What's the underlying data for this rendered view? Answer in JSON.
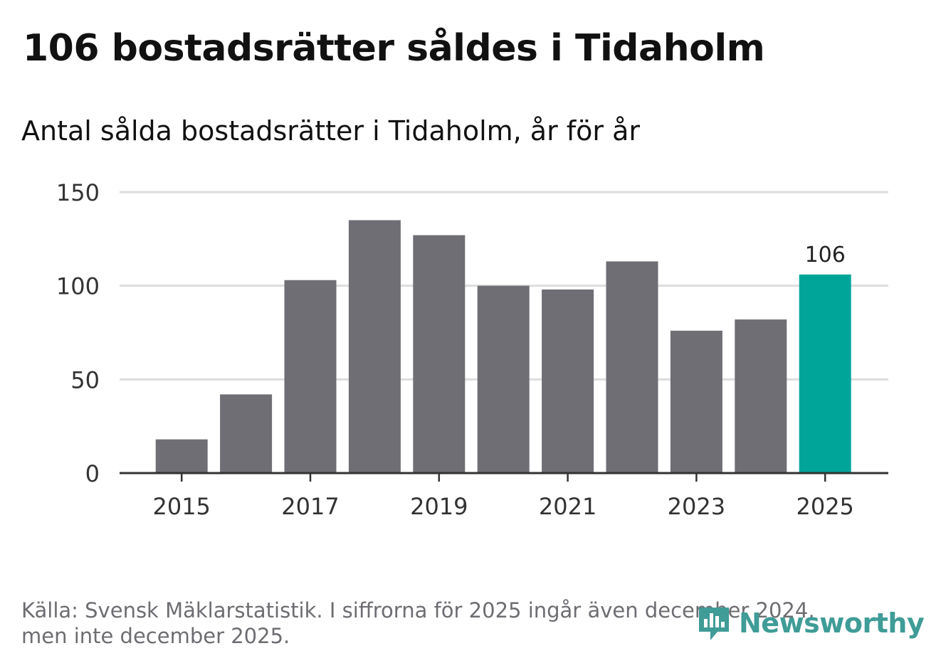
{
  "header": {
    "title": "106 bostadsrätter såldes i Tidaholm",
    "subtitle": "Antal sålda bostadsrätter i Tidaholm, år för år"
  },
  "chart_data": {
    "type": "bar",
    "title": "106 bostadsrätter såldes i Tidaholm",
    "subtitle": "Antal sålda bostadsrätter i Tidaholm, år för år",
    "categories": [
      "2015",
      "2016",
      "2017",
      "2018",
      "2019",
      "2020",
      "2021",
      "2022",
      "2023",
      "2024",
      "2025"
    ],
    "values": [
      18,
      42,
      103,
      135,
      127,
      100,
      98,
      113,
      76,
      82,
      106
    ],
    "x_tick_labels": [
      "2015",
      "2017",
      "2019",
      "2021",
      "2023",
      "2025"
    ],
    "y_ticks": [
      0,
      50,
      100,
      150
    ],
    "ylim": [
      0,
      150
    ],
    "xlabel": "",
    "ylabel": "",
    "grid": true,
    "highlight": {
      "category": "2025",
      "label": "106"
    },
    "colors": {
      "bar": "#6f6e74",
      "highlight": "#00a59a",
      "grid": "#dddddd",
      "axis": "#333333"
    }
  },
  "footer": {
    "source_line1": "Källa: Svensk Mäklarstatistik. I siffrorna för 2025 ingår även december 2024,",
    "source_line2": "men inte december 2025."
  },
  "logo": {
    "text": "Newsworthy",
    "icon": "newsworthy-chart-bubble-icon",
    "color": "#3f9c97"
  }
}
